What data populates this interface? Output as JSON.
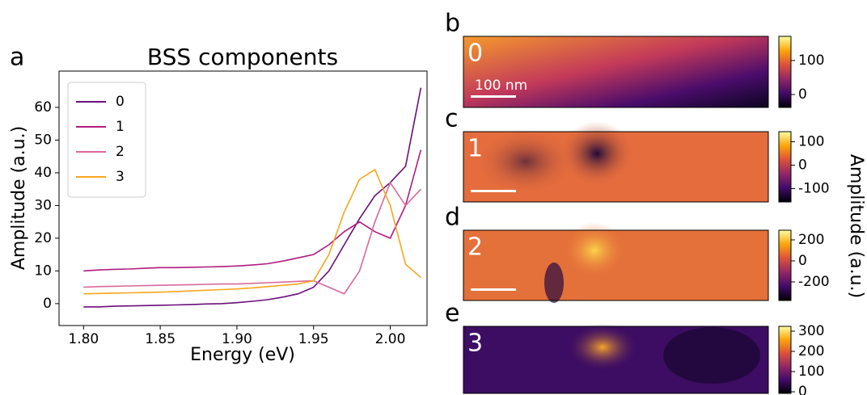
{
  "chart_data": [
    {
      "type": "line",
      "panel_label": "a",
      "title": "BSS components",
      "xlabel": "Energy (eV)",
      "ylabel": "Amplitude (a.u.)",
      "x": [
        1.8,
        1.81,
        1.82,
        1.83,
        1.84,
        1.85,
        1.86,
        1.87,
        1.88,
        1.89,
        1.9,
        1.91,
        1.92,
        1.93,
        1.94,
        1.95,
        1.96,
        1.97,
        1.98,
        1.99,
        2.0,
        2.01,
        2.02
      ],
      "series": [
        {
          "name": "0",
          "color": "#6b0f7a",
          "values": [
            -1,
            -1,
            -0.8,
            -0.7,
            -0.6,
            -0.5,
            -0.4,
            -0.3,
            -0.1,
            0,
            0.3,
            0.7,
            1.2,
            2,
            3,
            5,
            10,
            18,
            26,
            33,
            37,
            42,
            66
          ]
        },
        {
          "name": "1",
          "color": "#b21a80",
          "values": [
            10,
            10.3,
            10.5,
            10.6,
            10.8,
            11,
            11,
            11.1,
            11.2,
            11.3,
            11.5,
            11.8,
            12.2,
            13,
            14,
            15,
            18,
            22,
            25,
            22,
            20,
            30,
            47
          ]
        },
        {
          "name": "2",
          "color": "#d9689a",
          "values": [
            5,
            5.2,
            5.3,
            5.4,
            5.5,
            5.6,
            5.7,
            5.8,
            5.9,
            6,
            6,
            6.2,
            6.4,
            6.6,
            6.8,
            7,
            5,
            3,
            10,
            25,
            37,
            30,
            35
          ]
        },
        {
          "name": "3",
          "color": "#f7a61c",
          "values": [
            3,
            3.1,
            3.2,
            3.3,
            3.4,
            3.5,
            3.7,
            3.9,
            4.1,
            4.3,
            4.5,
            4.8,
            5.2,
            5.6,
            6,
            7,
            15,
            28,
            38,
            41,
            30,
            12,
            8
          ]
        }
      ],
      "xlim": [
        1.784,
        2.024
      ],
      "ylim": [
        -6.7,
        71.1
      ],
      "xticks": [
        {
          "value": 1.8,
          "label": "1.80"
        },
        {
          "value": 1.85,
          "label": "1.85"
        },
        {
          "value": 1.9,
          "label": "1.90"
        },
        {
          "value": 1.95,
          "label": "1.95"
        },
        {
          "value": 2.0,
          "label": "2.00"
        }
      ],
      "yticks": [
        0,
        10,
        20,
        30,
        40,
        50,
        60
      ],
      "legend": "upper left"
    },
    {
      "type": "heatmap",
      "panel_label": "b",
      "map_label": "0",
      "scale_bar": "100 nm",
      "colormap": "inferno",
      "clim": [
        -38,
        171
      ],
      "cticks": [
        0,
        100
      ]
    },
    {
      "type": "heatmap",
      "panel_label": "c",
      "map_label": "1",
      "colormap": "inferno",
      "clim": [
        -157,
        143
      ],
      "cticks": [
        -100,
        0,
        100
      ],
      "colorbar_label": "Amplitude (a.u.)"
    },
    {
      "type": "heatmap",
      "panel_label": "d",
      "map_label": "2",
      "colormap": "inferno",
      "clim": [
        -377,
        292
      ],
      "cticks": [
        -200,
        0,
        200
      ]
    },
    {
      "type": "heatmap",
      "panel_label": "e",
      "map_label": "3",
      "colormap": "inferno",
      "clim": [
        -8,
        324
      ],
      "cticks": [
        0,
        100,
        200,
        300
      ]
    }
  ]
}
